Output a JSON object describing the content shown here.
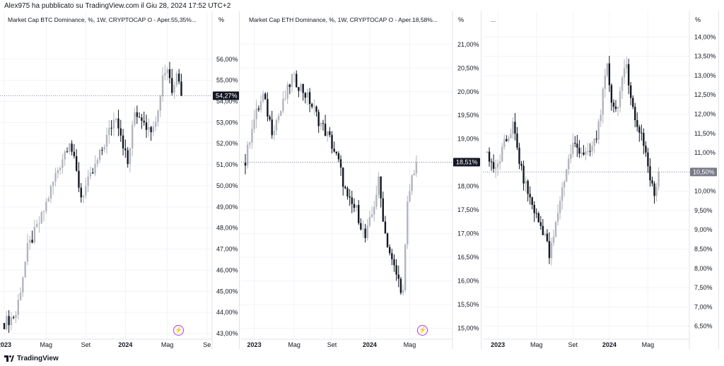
{
  "header": {
    "text": "Alex975 ha pubblicato su TradingView.com il Giu 28, 2024 17:52 UTC+2"
  },
  "footer": {
    "brand": "TradingView",
    "logo_icon": "tradingview-logo-icon"
  },
  "colors": {
    "up": "#b2b5be",
    "down": "#131722",
    "label_bg": "#131722",
    "label_bg_gray": "#787b86",
    "bolt": "#b03acb",
    "axis_text": "#131722",
    "priceline": "#787b86"
  },
  "chart_data": [
    {
      "type": "candlestick",
      "title": "Market Cap BTC Dominance, %, 1W, CRYPTOCAP  O - Aper.55,35%...",
      "units": "%",
      "ylim": [
        42.8,
        57.6
      ],
      "y_ticks": [
        "56,00%",
        "55,00%",
        "54,00%",
        "53,00%",
        "52,00%",
        "51,00%",
        "50,00%",
        "49,00%",
        "48,00%",
        "47,00%",
        "46,00%",
        "45,00%",
        "44,00%",
        "43,00%"
      ],
      "x_ticks": [
        {
          "label": "2023",
          "t": 0,
          "bold": true
        },
        {
          "label": "Mag",
          "t": 18
        },
        {
          "label": "Set",
          "t": 35
        },
        {
          "label": "2024",
          "t": 52,
          "bold": true
        },
        {
          "label": "Mag",
          "t": 70
        },
        {
          "label": "Se",
          "t": 87
        }
      ],
      "x_span": 88,
      "last_value": 54.27,
      "last_label": "54,27%",
      "label_style": "dark",
      "bolt_t": 75,
      "anchors": [
        [
          0,
          43.5
        ],
        [
          5,
          43.9
        ],
        [
          10,
          47.0
        ],
        [
          16,
          48.5
        ],
        [
          22,
          50.5
        ],
        [
          28,
          52.2
        ],
        [
          33,
          49.5
        ],
        [
          38,
          50.6
        ],
        [
          44,
          52.3
        ],
        [
          48,
          53.4
        ],
        [
          50,
          52.5
        ],
        [
          53,
          51.0
        ],
        [
          56,
          53.5
        ],
        [
          60,
          53.2
        ],
        [
          62,
          52.6
        ],
        [
          66,
          53.5
        ],
        [
          68,
          55.3
        ],
        [
          70,
          55.6
        ],
        [
          72,
          54.6
        ],
        [
          74,
          55.5
        ],
        [
          76,
          54.27
        ]
      ]
    },
    {
      "type": "candlestick",
      "title": "Market Cap ETH Dominance, %, 1W, CRYPTOCAP  O - Aper.18,58%...",
      "units": "%",
      "ylim": [
        14.8,
        21.4
      ],
      "y_ticks": [
        "21,00%",
        "20,50%",
        "20,00%",
        "19,50%",
        "19,00%",
        "18,50%",
        "18,00%",
        "17,50%",
        "17,00%",
        "16,50%",
        "16,00%",
        "15,50%",
        "15,00%"
      ],
      "x_ticks": [
        {
          "label": "2023",
          "t": 4,
          "bold": true
        },
        {
          "label": "Mag",
          "t": 22
        },
        {
          "label": "Set",
          "t": 39
        },
        {
          "label": "2024",
          "t": 56,
          "bold": true
        },
        {
          "label": "Mag",
          "t": 74
        }
      ],
      "x_span": 92,
      "last_value": 18.51,
      "last_label": "18,51%",
      "label_style": "dark",
      "bolt_t": 80,
      "anchors": [
        [
          0,
          18.5
        ],
        [
          3,
          19.3
        ],
        [
          8,
          19.9
        ],
        [
          12,
          19.2
        ],
        [
          16,
          19.6
        ],
        [
          21,
          20.3
        ],
        [
          25,
          20.1
        ],
        [
          29,
          19.8
        ],
        [
          33,
          19.4
        ],
        [
          38,
          19.0
        ],
        [
          42,
          18.5
        ],
        [
          46,
          17.7
        ],
        [
          50,
          17.5
        ],
        [
          54,
          16.9
        ],
        [
          57,
          17.4
        ],
        [
          60,
          18.1
        ],
        [
          63,
          17.0
        ],
        [
          66,
          16.4
        ],
        [
          69,
          16.0
        ],
        [
          71,
          15.75
        ],
        [
          73,
          17.6
        ],
        [
          75,
          18.2
        ],
        [
          77,
          18.51
        ]
      ]
    },
    {
      "type": "candlestick",
      "title": "...",
      "units": "%",
      "ylim": [
        6.2,
        14.3
      ],
      "y_ticks": [
        "14,00%",
        "13,50%",
        "13,00%",
        "12,50%",
        "12,00%",
        "11,50%",
        "11,00%",
        "10,50%",
        "10,00%",
        "9,50%",
        "9,00%",
        "8,50%",
        "8,00%",
        "7,50%",
        "7,00%",
        "6,50%"
      ],
      "x_ticks": [
        {
          "label": "2023",
          "t": 5,
          "bold": true
        },
        {
          "label": "Mag",
          "t": 23
        },
        {
          "label": "Set",
          "t": 40
        },
        {
          "label": "2024",
          "t": 57,
          "bold": true
        },
        {
          "label": "Mag",
          "t": 75
        }
      ],
      "x_span": 93,
      "last_value": 10.5,
      "last_label": "10,50%",
      "label_style": "gray",
      "bolt_t": null,
      "anchors": [
        [
          0,
          11.0
        ],
        [
          4,
          10.5
        ],
        [
          8,
          11.2
        ],
        [
          12,
          11.7
        ],
        [
          16,
          10.5
        ],
        [
          20,
          9.8
        ],
        [
          24,
          9.2
        ],
        [
          27,
          8.9
        ],
        [
          29,
          8.3
        ],
        [
          31,
          8.8
        ],
        [
          34,
          9.8
        ],
        [
          37,
          10.6
        ],
        [
          40,
          11.2
        ],
        [
          43,
          11.1
        ],
        [
          47,
          10.9
        ],
        [
          51,
          11.4
        ],
        [
          54,
          12.5
        ],
        [
          56,
          13.2
        ],
        [
          58,
          12.4
        ],
        [
          60,
          12.1
        ],
        [
          63,
          12.8
        ],
        [
          65,
          13.3
        ],
        [
          67,
          12.5
        ],
        [
          69,
          11.8
        ],
        [
          72,
          11.5
        ],
        [
          74,
          11.0
        ],
        [
          76,
          10.3
        ],
        [
          78,
          9.9
        ],
        [
          80,
          10.5
        ]
      ]
    }
  ]
}
